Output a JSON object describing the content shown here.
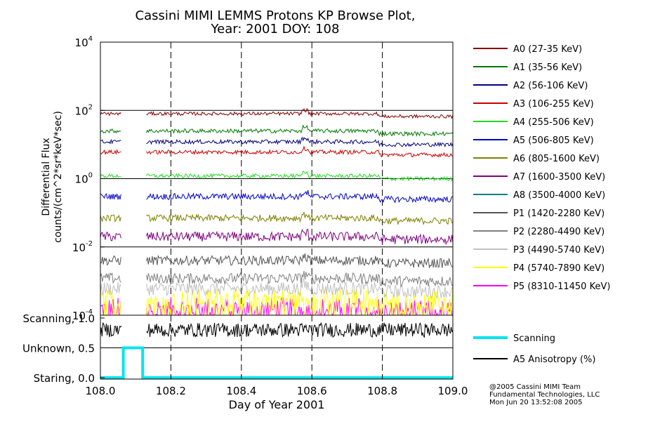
{
  "chart_data": {
    "type": "line",
    "title_line1": "Cassini MIMI LEMMS Protons KP Browse Plot,",
    "title_line2": "Year: 2001 DOY: 108",
    "xlabel": "Day of Year 2001",
    "ylabel_line1": "Differential Flux",
    "ylabel_line2": "counts/(cm^2*sr*keV*sec)",
    "xlim": [
      108.0,
      109.0
    ],
    "x_ticks": [
      "108.0",
      "108.2",
      "108.4",
      "108.6",
      "108.8",
      "109.0"
    ],
    "x_tick_values": [
      108.0,
      108.2,
      108.4,
      108.6,
      108.8,
      109.0
    ],
    "data_gap": [
      108.06,
      108.13
    ],
    "flux_panel": {
      "yscale": "log",
      "ylim": [
        0.0001,
        10000
      ],
      "y_ticks": [
        {
          "base": "10",
          "exp": "4",
          "value": 10000
        },
        {
          "base": "10",
          "exp": "2",
          "value": 100
        },
        {
          "base": "10",
          "exp": "0",
          "value": 1
        },
        {
          "base": "10",
          "exp": "-2",
          "value": 0.01
        },
        {
          "base": "10",
          "exp": "-4",
          "value": 0.0001
        }
      ],
      "series": [
        {
          "name": "A0 (27-35 KeV)",
          "color": "#800000",
          "level": 80,
          "noise": 0.05
        },
        {
          "name": "A1 (35-56 KeV)",
          "color": "#007a00",
          "level": 25,
          "noise": 0.06
        },
        {
          "name": "A2 (56-106 KeV)",
          "color": "#00007a",
          "level": 12,
          "noise": 0.06
        },
        {
          "name": "A3 (106-255 KeV)",
          "color": "#cc0000",
          "level": 6,
          "noise": 0.06
        },
        {
          "name": "A4 (255-506 KeV)",
          "color": "#22dd22",
          "level": 1.2,
          "noise": 0.06
        },
        {
          "name": "A5 (506-805 KeV)",
          "color": "#0000cc",
          "level": 0.3,
          "noise": 0.09
        },
        {
          "name": "A6 (805-1600 KeV)",
          "color": "#808000",
          "level": 0.07,
          "noise": 0.1
        },
        {
          "name": "A7 (1600-3500 KeV)",
          "color": "#800080",
          "level": 0.02,
          "noise": 0.14
        },
        {
          "name": "A8 (3500-4000 KeV)",
          "color": "#008080",
          "level": null,
          "noise": 0
        },
        {
          "name": "P1 (1420-2280 KeV)",
          "color": "#555555",
          "level": 0.004,
          "noise": 0.14
        },
        {
          "name": "P2 (2280-4490 KeV)",
          "color": "#808080",
          "level": 0.0012,
          "noise": 0.16
        },
        {
          "name": "P3 (4490-5740 KeV)",
          "color": "#c0c0c0",
          "level": 0.0006,
          "noise": 0.2
        },
        {
          "name": "P4 (5740-7890 KeV)",
          "color": "#ffff00",
          "level": 0.0003,
          "noise": 0.3
        },
        {
          "name": "P5 (8310-11450 KeV)",
          "color": "#ff00ff",
          "level": 0.00015,
          "noise": 0.35
        }
      ]
    },
    "mode_panel": {
      "ylim": [
        0.0,
        1.0
      ],
      "y_ticks": [
        {
          "label": "Scanning, 1.0",
          "value": 1.0
        },
        {
          "label": "Unknown, 0.5",
          "value": 0.5
        },
        {
          "label": "Staring, 0.0",
          "value": 0.0
        }
      ],
      "series": [
        {
          "name": "Scanning",
          "color": "#00e5ee",
          "points": [
            [
              108.0,
              0.0
            ],
            [
              108.065,
              0.0
            ],
            [
              108.065,
              0.5
            ],
            [
              108.12,
              0.5
            ],
            [
              108.12,
              0.0
            ],
            [
              109.0,
              0.0
            ]
          ]
        },
        {
          "name": "A5 Anisotropy (%)",
          "color": "#000000",
          "level": 0.8,
          "amplitude": 0.12
        }
      ]
    }
  },
  "footer": {
    "line1": "@2005 Cassini MIMI Team",
    "line2": "Fundamental Technologies, LLC",
    "line3": "Mon Jun 20 13:52:08 2005"
  }
}
